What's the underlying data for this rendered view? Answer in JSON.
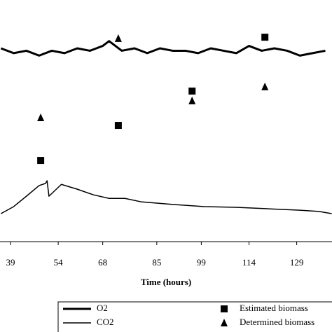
{
  "chart_data": {
    "type": "line_scatter",
    "x_label": "Time (hours)",
    "xlim": [
      35.7,
      140.1
    ],
    "xticks": [
      39,
      54,
      68,
      85,
      99,
      114,
      129
    ],
    "ylim": [
      0,
      100
    ],
    "series": [
      {
        "name": "O2",
        "kind": "line",
        "color": "#000000",
        "x": [
          36,
          40,
          44,
          48,
          52,
          56,
          60,
          64,
          66,
          68,
          70,
          72,
          74,
          78,
          82,
          86,
          90,
          94,
          98,
          102,
          106,
          110,
          114,
          118,
          122,
          126,
          130,
          134,
          138
        ],
        "values": [
          80,
          78,
          79,
          77,
          79,
          78,
          80,
          79,
          80,
          81,
          83,
          81,
          79,
          80,
          78,
          80,
          79,
          79,
          78,
          80,
          79,
          78,
          81,
          79,
          80,
          79,
          77,
          78,
          79
        ]
      },
      {
        "name": "CO2",
        "kind": "line",
        "color": "#000000",
        "x": [
          36,
          40,
          44,
          48,
          50,
          50.5,
          51.1,
          55,
          60,
          65,
          70,
          75,
          80,
          90,
          100,
          110,
          120,
          130,
          136,
          140
        ],
        "values": [
          11.6,
          14.5,
          18.8,
          23.2,
          24.1,
          25.2,
          18.8,
          23.7,
          21.7,
          19.4,
          17.9,
          17.9,
          16.5,
          15.4,
          14.5,
          14.2,
          13.6,
          13.0,
          12.5,
          11.6
        ]
      },
      {
        "name": "Estimated biomass",
        "kind": "square",
        "color": "#000000",
        "x": [
          48.5,
          72.9,
          96.1,
          119
        ],
        "values": [
          33.6,
          48.1,
          62.3,
          84.6
        ]
      },
      {
        "name": "Determined biomass",
        "kind": "triangle",
        "color": "#000000",
        "x": [
          48.5,
          72.9,
          96.1,
          119
        ],
        "values": [
          51.3,
          84.1,
          58.3,
          64.1
        ]
      }
    ]
  }
}
